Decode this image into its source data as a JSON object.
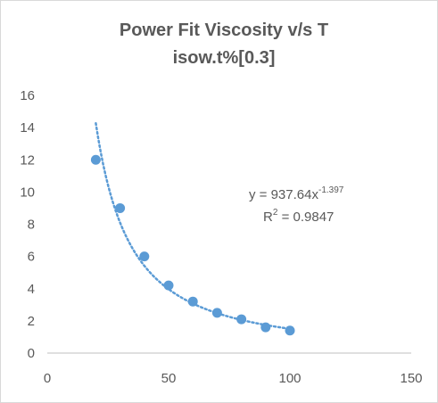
{
  "chart_data": {
    "type": "scatter",
    "title_line1": "Power Fit Viscosity v/s T",
    "title_line2": "isow.t%[0.3]",
    "xlabel": "",
    "ylabel": "",
    "xlim": [
      0,
      150
    ],
    "ylim": [
      0,
      16
    ],
    "x_ticks": [
      "0",
      "50",
      "100",
      "150"
    ],
    "y_ticks": [
      "0",
      "2",
      "4",
      "6",
      "8",
      "10",
      "12",
      "14",
      "16"
    ],
    "grid": false,
    "points": [
      {
        "x": 20,
        "y": 12.0
      },
      {
        "x": 30,
        "y": 9.0
      },
      {
        "x": 40,
        "y": 6.0
      },
      {
        "x": 50,
        "y": 4.2
      },
      {
        "x": 60,
        "y": 3.2
      },
      {
        "x": 70,
        "y": 2.5
      },
      {
        "x": 80,
        "y": 2.1
      },
      {
        "x": 90,
        "y": 1.6
      },
      {
        "x": 100,
        "y": 1.4
      }
    ],
    "trendline": {
      "type": "power",
      "coefficient": 937.64,
      "exponent": -1.397,
      "equation_prefix": "y = 937.64x",
      "equation_exponent": "-1.397",
      "r2_prefix": "R",
      "r2_sup": "2",
      "r2_value": " = 0.9847"
    },
    "marker_color": "#5b9bd5",
    "axis_color": "#bfbfbf"
  }
}
